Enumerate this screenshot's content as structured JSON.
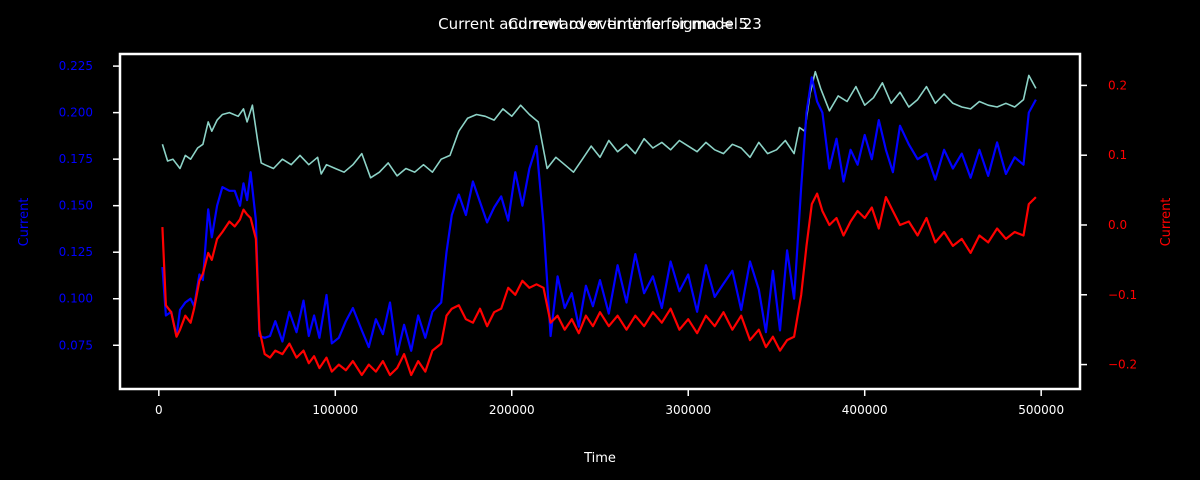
{
  "chart_data": {
    "type": "line",
    "titles": [
      "Current and reward over time for model 23",
      "Current over time for sigma = 5"
    ],
    "xlabel": "Time",
    "ylabel_left": "Current",
    "ylabel_right": "Current",
    "xlim": [
      -22000,
      522000
    ],
    "ylim_left": [
      0.0515,
      0.2315
    ],
    "ylim_right": [
      -0.235,
      0.245
    ],
    "x_ticks": [
      0,
      100000,
      200000,
      300000,
      400000,
      500000
    ],
    "y_ticks_left": [
      0.075,
      0.1,
      0.125,
      0.15,
      0.175,
      0.2,
      0.225
    ],
    "y_ticks_left_labels": [
      "0.075",
      "0.100",
      "0.125",
      "0.150",
      "0.175",
      "0.200",
      "0.225"
    ],
    "y_ticks_right": [
      -0.2,
      -0.1,
      0.0,
      0.1,
      0.2
    ],
    "y_ticks_right_labels": [
      "−0.2",
      "−0.1",
      "0.0",
      "0.1",
      "0.2"
    ],
    "colors": {
      "background": "#000000",
      "frame": "#ffffff",
      "text": "#ffffff",
      "left_axis": "#0000ff",
      "right_axis": "#ff0000",
      "reward_line": "#8dd3c7",
      "blue_line": "#0000ff",
      "red_line": "#ff0000"
    },
    "series": [
      {
        "color": "#8dd3c7",
        "axis": "left",
        "x": [
          2000,
          5000,
          8000,
          12000,
          15000,
          18000,
          22000,
          25000,
          28000,
          30000,
          33000,
          36000,
          40000,
          45000,
          48000,
          50000,
          53000,
          56000,
          58000,
          60000,
          65000,
          70000,
          75000,
          80000,
          85000,
          90000,
          92000,
          95000,
          100000,
          105000,
          110000,
          115000,
          120000,
          125000,
          130000,
          135000,
          140000,
          145000,
          150000,
          155000,
          160000,
          165000,
          170000,
          175000,
          180000,
          185000,
          190000,
          195000,
          200000,
          205000,
          210000,
          215000,
          220000,
          225000,
          230000,
          235000,
          240000,
          245000,
          250000,
          255000,
          260000,
          265000,
          270000,
          275000,
          280000,
          285000,
          290000,
          295000,
          300000,
          305000,
          310000,
          315000,
          320000,
          325000,
          330000,
          335000,
          340000,
          345000,
          350000,
          355000,
          360000,
          363000,
          366000,
          369000,
          372000,
          375000,
          380000,
          385000,
          390000,
          395000,
          400000,
          405000,
          410000,
          415000,
          420000,
          425000,
          430000,
          435000,
          440000,
          445000,
          450000,
          455000,
          460000,
          465000,
          470000,
          475000,
          480000,
          485000,
          490000,
          493000,
          497000
        ],
        "y": [
          0.183,
          0.174,
          0.175,
          0.17,
          0.177,
          0.175,
          0.181,
          0.183,
          0.195,
          0.19,
          0.196,
          0.199,
          0.2,
          0.198,
          0.202,
          0.195,
          0.204,
          0.185,
          0.173,
          0.172,
          0.17,
          0.175,
          0.172,
          0.177,
          0.172,
          0.176,
          0.167,
          0.172,
          0.17,
          0.168,
          0.172,
          0.178,
          0.165,
          0.168,
          0.173,
          0.166,
          0.17,
          0.168,
          0.172,
          0.168,
          0.175,
          0.177,
          0.19,
          0.197,
          0.199,
          0.198,
          0.196,
          0.202,
          0.198,
          0.204,
          0.199,
          0.195,
          0.17,
          0.176,
          0.172,
          0.168,
          0.175,
          0.182,
          0.176,
          0.185,
          0.179,
          0.183,
          0.178,
          0.186,
          0.181,
          0.184,
          0.18,
          0.185,
          0.182,
          0.179,
          0.184,
          0.18,
          0.178,
          0.183,
          0.181,
          0.176,
          0.184,
          0.178,
          0.18,
          0.185,
          0.178,
          0.192,
          0.19,
          0.21,
          0.222,
          0.213,
          0.201,
          0.209,
          0.206,
          0.214,
          0.204,
          0.208,
          0.216,
          0.205,
          0.211,
          0.203,
          0.207,
          0.214,
          0.205,
          0.21,
          0.205,
          0.203,
          0.202,
          0.206,
          0.204,
          0.203,
          0.205,
          0.203,
          0.207,
          0.22,
          0.213
        ]
      },
      {
        "color": "#0000ff",
        "axis": "left",
        "x": [
          2000,
          4000,
          7000,
          10000,
          12000,
          15000,
          18000,
          20000,
          23000,
          25000,
          28000,
          30000,
          33000,
          36000,
          40000,
          43000,
          46000,
          48000,
          50000,
          52000,
          55000,
          57000,
          60000,
          63000,
          66000,
          70000,
          74000,
          78000,
          82000,
          85000,
          88000,
          91000,
          95000,
          98000,
          102000,
          106000,
          110000,
          115000,
          119000,
          123000,
          127000,
          131000,
          135000,
          139000,
          143000,
          147000,
          151000,
          155000,
          160000,
          163000,
          166000,
          170000,
          174000,
          178000,
          182000,
          186000,
          190000,
          194000,
          198000,
          202000,
          206000,
          210000,
          214000,
          218000,
          222000,
          226000,
          230000,
          234000,
          238000,
          242000,
          246000,
          250000,
          255000,
          260000,
          265000,
          270000,
          275000,
          280000,
          285000,
          290000,
          295000,
          300000,
          305000,
          310000,
          315000,
          320000,
          325000,
          330000,
          335000,
          340000,
          344000,
          348000,
          352000,
          356000,
          360000,
          364000,
          367000,
          370000,
          373000,
          376000,
          380000,
          384000,
          388000,
          392000,
          396000,
          400000,
          404000,
          408000,
          412000,
          416000,
          420000,
          425000,
          430000,
          435000,
          440000,
          445000,
          450000,
          455000,
          460000,
          465000,
          470000,
          475000,
          480000,
          485000,
          490000,
          493000,
          497000
        ],
        "y": [
          0.117,
          0.091,
          0.093,
          0.08,
          0.094,
          0.098,
          0.1,
          0.096,
          0.113,
          0.11,
          0.148,
          0.133,
          0.15,
          0.16,
          0.158,
          0.158,
          0.15,
          0.162,
          0.153,
          0.168,
          0.142,
          0.08,
          0.079,
          0.08,
          0.088,
          0.077,
          0.093,
          0.082,
          0.099,
          0.08,
          0.091,
          0.079,
          0.102,
          0.076,
          0.079,
          0.088,
          0.095,
          0.083,
          0.074,
          0.089,
          0.081,
          0.098,
          0.07,
          0.086,
          0.072,
          0.091,
          0.079,
          0.093,
          0.098,
          0.125,
          0.145,
          0.156,
          0.145,
          0.163,
          0.152,
          0.141,
          0.149,
          0.155,
          0.142,
          0.168,
          0.15,
          0.17,
          0.182,
          0.14,
          0.08,
          0.112,
          0.095,
          0.103,
          0.085,
          0.107,
          0.096,
          0.11,
          0.092,
          0.118,
          0.098,
          0.124,
          0.103,
          0.112,
          0.095,
          0.12,
          0.104,
          0.113,
          0.093,
          0.118,
          0.101,
          0.108,
          0.115,
          0.094,
          0.12,
          0.105,
          0.082,
          0.115,
          0.083,
          0.126,
          0.1,
          0.16,
          0.2,
          0.219,
          0.206,
          0.2,
          0.17,
          0.186,
          0.163,
          0.18,
          0.172,
          0.188,
          0.175,
          0.196,
          0.18,
          0.168,
          0.193,
          0.183,
          0.175,
          0.178,
          0.164,
          0.18,
          0.17,
          0.178,
          0.165,
          0.18,
          0.166,
          0.184,
          0.167,
          0.176,
          0.172,
          0.2,
          0.207
        ]
      },
      {
        "color": "#ff0000",
        "axis": "right",
        "x": [
          2000,
          4000,
          7000,
          10000,
          12000,
          15000,
          18000,
          20000,
          23000,
          25000,
          28000,
          30000,
          33000,
          36000,
          40000,
          43000,
          46000,
          48000,
          50000,
          52000,
          55000,
          57000,
          60000,
          63000,
          66000,
          70000,
          74000,
          78000,
          82000,
          85000,
          88000,
          91000,
          95000,
          98000,
          102000,
          106000,
          110000,
          115000,
          119000,
          123000,
          127000,
          131000,
          135000,
          139000,
          143000,
          147000,
          151000,
          155000,
          160000,
          163000,
          166000,
          170000,
          174000,
          178000,
          182000,
          186000,
          190000,
          194000,
          198000,
          202000,
          206000,
          210000,
          214000,
          218000,
          222000,
          226000,
          230000,
          234000,
          238000,
          242000,
          246000,
          250000,
          255000,
          260000,
          265000,
          270000,
          275000,
          280000,
          285000,
          290000,
          295000,
          300000,
          305000,
          310000,
          315000,
          320000,
          325000,
          330000,
          335000,
          340000,
          344000,
          348000,
          352000,
          356000,
          360000,
          364000,
          367000,
          370000,
          373000,
          376000,
          380000,
          384000,
          388000,
          392000,
          396000,
          400000,
          404000,
          408000,
          412000,
          416000,
          420000,
          425000,
          430000,
          435000,
          440000,
          445000,
          450000,
          455000,
          460000,
          465000,
          470000,
          475000,
          480000,
          485000,
          490000,
          493000,
          497000
        ],
        "y": [
          -0.003,
          -0.115,
          -0.125,
          -0.16,
          -0.15,
          -0.13,
          -0.14,
          -0.12,
          -0.08,
          -0.07,
          -0.04,
          -0.05,
          -0.02,
          -0.01,
          0.005,
          -0.002,
          0.008,
          0.022,
          0.015,
          0.01,
          -0.02,
          -0.15,
          -0.185,
          -0.19,
          -0.18,
          -0.185,
          -0.17,
          -0.19,
          -0.18,
          -0.198,
          -0.188,
          -0.205,
          -0.19,
          -0.21,
          -0.2,
          -0.208,
          -0.195,
          -0.215,
          -0.2,
          -0.21,
          -0.195,
          -0.215,
          -0.205,
          -0.185,
          -0.215,
          -0.195,
          -0.21,
          -0.18,
          -0.17,
          -0.13,
          -0.12,
          -0.115,
          -0.135,
          -0.14,
          -0.12,
          -0.145,
          -0.125,
          -0.12,
          -0.09,
          -0.1,
          -0.08,
          -0.09,
          -0.085,
          -0.09,
          -0.14,
          -0.13,
          -0.15,
          -0.135,
          -0.155,
          -0.13,
          -0.145,
          -0.125,
          -0.145,
          -0.13,
          -0.15,
          -0.13,
          -0.145,
          -0.125,
          -0.14,
          -0.12,
          -0.15,
          -0.135,
          -0.155,
          -0.13,
          -0.145,
          -0.125,
          -0.15,
          -0.13,
          -0.165,
          -0.15,
          -0.175,
          -0.16,
          -0.18,
          -0.165,
          -0.16,
          -0.1,
          -0.03,
          0.03,
          0.045,
          0.02,
          0.0,
          0.01,
          -0.015,
          0.005,
          0.02,
          0.01,
          0.025,
          -0.005,
          0.04,
          0.02,
          0.0,
          0.005,
          -0.015,
          0.01,
          -0.025,
          -0.01,
          -0.03,
          -0.02,
          -0.04,
          -0.015,
          -0.025,
          -0.005,
          -0.02,
          -0.01,
          -0.015,
          0.03,
          0.04
        ]
      }
    ]
  }
}
